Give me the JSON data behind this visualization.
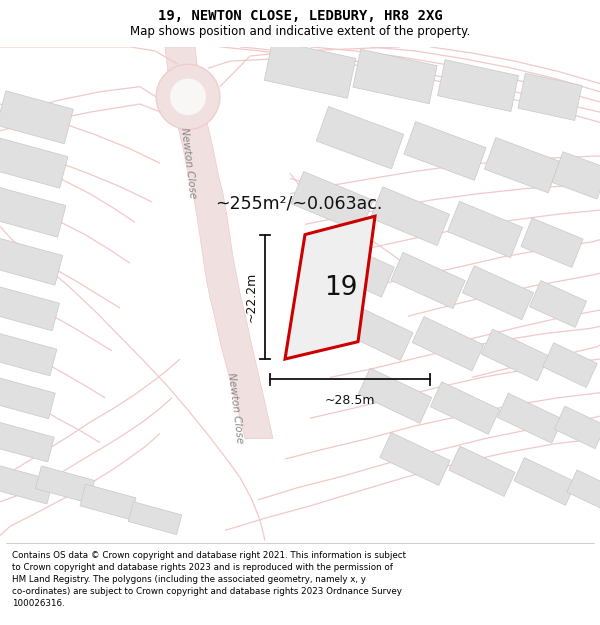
{
  "title": "19, NEWTON CLOSE, LEDBURY, HR8 2XG",
  "subtitle": "Map shows position and indicative extent of the property.",
  "footer": "Contains OS data © Crown copyright and database right 2021. This information is subject\nto Crown copyright and database rights 2023 and is reproduced with the permission of\nHM Land Registry. The polygons (including the associated geometry, namely x, y\nco-ordinates) are subject to Crown copyright and database rights 2023 Ordnance Survey\n100026316.",
  "area_text": "~255m²/~0.063ac.",
  "plot_number": "19",
  "dim_width": "~28.5m",
  "dim_height": "~22.2m",
  "street_label1": "Newton Close",
  "street_label2": "Newton Close",
  "map_bg": "#f8f7f5",
  "building_color": "#e0e0e0",
  "building_edge": "#c8c8c8",
  "road_color": "#f2c8c8",
  "road_lw": 1.2,
  "plot_fill": "#f0f0f0",
  "plot_edge": "#cc0000",
  "annotation_color": "#111111",
  "street_color": "#888888",
  "dim_color": "#111111"
}
